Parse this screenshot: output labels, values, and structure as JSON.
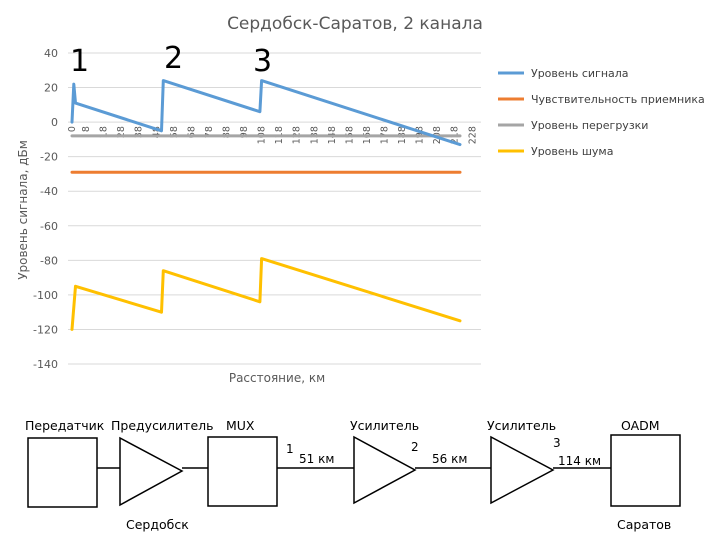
{
  "chart_data": {
    "type": "line",
    "title": "Сердобск-Саратов, 2 канала",
    "xlabel": "Расстояние, км",
    "ylabel": "Уровень сигнала, дБм",
    "ylim": [
      -140,
      40
    ],
    "yticks": [
      40,
      20,
      0,
      -20,
      -40,
      -60,
      -80,
      -100,
      -120,
      -140
    ],
    "xlim": [
      0,
      221
    ],
    "xticks": [
      0,
      8,
      18,
      28,
      38,
      48,
      58,
      68,
      78,
      88,
      98,
      108,
      118,
      128,
      138,
      148,
      158,
      168,
      178,
      188,
      198,
      208,
      218,
      228
    ],
    "x_tick_labels": [
      "0",
      "8",
      "18",
      "28",
      "38",
      "48",
      "58",
      "68",
      "78",
      "88",
      "98",
      "108",
      "118",
      "128",
      "138",
      "148",
      "158",
      "168",
      "178",
      "188",
      "198",
      "208",
      "218",
      "228"
    ],
    "grid": "horizontal",
    "legend_position": "right",
    "series": [
      {
        "name": "Уровень сигнала",
        "color": "#5b9bd5",
        "x": [
          0,
          1,
          2,
          51,
          52,
          107,
          108,
          221
        ],
        "y": [
          0,
          22,
          11,
          -5,
          24,
          6,
          24,
          -13
        ]
      },
      {
        "name": "Чувствительность приемника",
        "color": "#ed7d31",
        "x": [
          0,
          221
        ],
        "y": [
          -29,
          -29
        ]
      },
      {
        "name": "Уровень перегрузки",
        "color": "#a5a5a5",
        "x": [
          0,
          221
        ],
        "y": [
          -8,
          -8
        ]
      },
      {
        "name": "Уровень шума",
        "color": "#ffc000",
        "x": [
          0,
          2,
          51,
          52,
          107,
          108,
          221
        ],
        "y": [
          -120,
          -95,
          -110,
          -86,
          -104,
          -79,
          -115
        ]
      }
    ],
    "annotations": [
      "1",
      "2",
      "3"
    ]
  },
  "diagram": {
    "transmitter": "Передатчик",
    "preamp": "Предусилитель",
    "mux": "MUX",
    "amp1": "Усилитель",
    "amp2": "Усилитель",
    "oadm": "OADM",
    "point1": "1",
    "point2": "2",
    "point3": "3",
    "dist1": "51 км",
    "dist2": "56 км",
    "dist3": "114 км",
    "city_start": "Сердобск",
    "city_end": "Саратов"
  }
}
